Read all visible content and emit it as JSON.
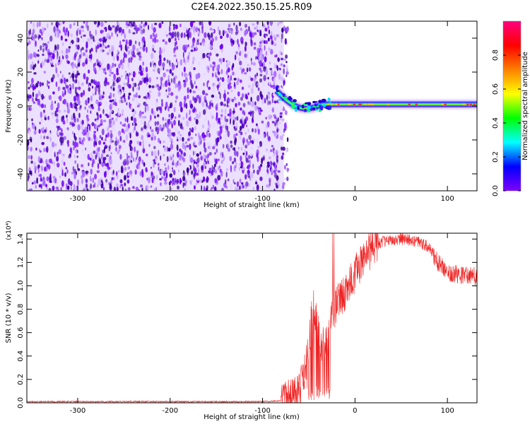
{
  "figure_title": "C2E4.2022.350.15.25.R09",
  "chart_data": [
    {
      "type": "heatmap",
      "xlabel": "Height of straight line (km)",
      "ylabel": "Frequency (Hz)",
      "xlim": [
        -355,
        132
      ],
      "ylim": [
        -50,
        50
      ],
      "xticks": [
        -300,
        -200,
        -100,
        0,
        100
      ],
      "xtick_labels": [
        "-300",
        "-200",
        "-100",
        "0",
        "100"
      ],
      "yticks": [
        -40,
        -20,
        0,
        20,
        40
      ],
      "ytick_labels": [
        "-40",
        "-20",
        "0",
        "20",
        "40"
      ],
      "noise_region_x": [
        -355,
        -77
      ],
      "signal_band": {
        "x_start": -85,
        "x_end": 132,
        "start_frequency": 9,
        "settle_x": -35,
        "frequency": 1
      },
      "colorbar": {
        "label": "Normalized spectral amplitude",
        "ticks": [
          0.0,
          0.2,
          0.4,
          0.6,
          0.8
        ],
        "tick_labels": [
          "0.0",
          "0.2",
          "0.4",
          "0.6",
          "0.8"
        ],
        "range": [
          0,
          1
        ],
        "colors": [
          "#8000ff",
          "#0000ff",
          "#00ffff",
          "#00ff00",
          "#ffff00",
          "#ff8000",
          "#ff0000",
          "#ff0080"
        ]
      },
      "grid": false
    },
    {
      "type": "line",
      "xlabel": "Height of straight line (km)",
      "ylabel": "SNR (10 * v/v)",
      "y_multiplier": "(x10⁴)",
      "xlim": [
        -355,
        132
      ],
      "ylim": [
        0,
        1.45
      ],
      "xticks": [
        -300,
        -200,
        -100,
        0,
        100
      ],
      "xtick_labels": [
        "-300",
        "-200",
        "-100",
        "0",
        "100"
      ],
      "yticks": [
        0.0,
        0.2,
        0.4,
        0.6,
        0.8,
        1.0,
        1.2,
        1.4
      ],
      "ytick_labels": [
        "0.0",
        "0.2",
        "0.4",
        "0.6",
        "0.8",
        "1.0",
        "1.2",
        "1.4"
      ],
      "series_color": "#ee2222",
      "profile_x": [
        -355,
        -100,
        -75,
        -60,
        -52,
        -45,
        -40,
        -35,
        -30,
        -25,
        -20,
        -10,
        0,
        10,
        20,
        30,
        40,
        50,
        60,
        70,
        80,
        90,
        100,
        110,
        120,
        132
      ],
      "profile_y": [
        0.01,
        0.01,
        0.02,
        0.1,
        0.35,
        0.85,
        0.6,
        0.5,
        0.5,
        0.72,
        0.85,
        0.95,
        1.1,
        1.25,
        1.33,
        1.38,
        1.39,
        1.4,
        1.39,
        1.37,
        1.33,
        1.2,
        1.12,
        1.1,
        1.09,
        1.08
      ],
      "grid": false
    }
  ]
}
